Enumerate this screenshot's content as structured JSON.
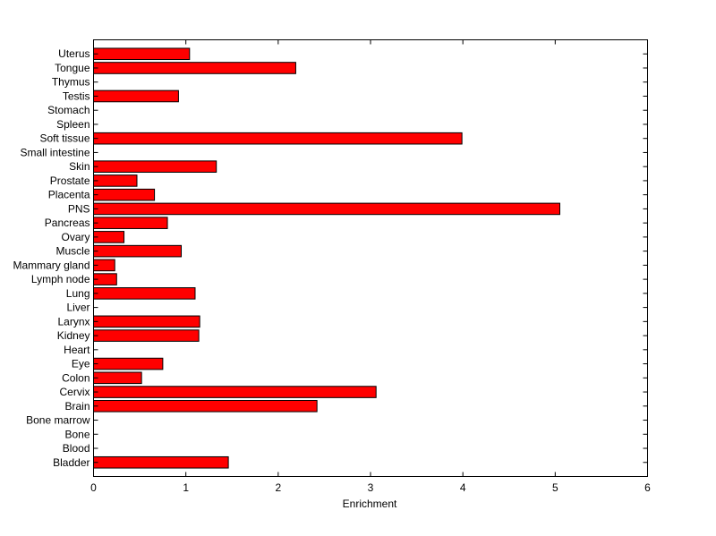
{
  "chart_data": {
    "type": "bar",
    "orientation": "horizontal",
    "xlabel": "Enrichment",
    "ylabel": "",
    "xlim": [
      0,
      6
    ],
    "xticks": [
      0,
      1,
      2,
      3,
      4,
      5,
      6
    ],
    "grid": false,
    "bar_color": "#ff0000",
    "categories": [
      "Uterus",
      "Tongue",
      "Thymus",
      "Testis",
      "Stomach",
      "Spleen",
      "Soft tissue",
      "Small intestine",
      "Skin",
      "Prostate",
      "Placenta",
      "PNS",
      "Pancreas",
      "Ovary",
      "Muscle",
      "Mammary gland",
      "Lymph node",
      "Lung",
      "Liver",
      "Larynx",
      "Kidney",
      "Heart",
      "Eye",
      "Colon",
      "Cervix",
      "Brain",
      "Bone marrow",
      "Bone",
      "Blood",
      "Bladder"
    ],
    "values": [
      1.04,
      2.19,
      0,
      0.92,
      0,
      0,
      3.99,
      0,
      1.33,
      0.47,
      0.66,
      5.05,
      0.8,
      0.33,
      0.95,
      0.23,
      0.25,
      1.1,
      0,
      1.15,
      1.14,
      0,
      0.75,
      0.52,
      3.06,
      2.42,
      0,
      0,
      0,
      1.46
    ]
  }
}
